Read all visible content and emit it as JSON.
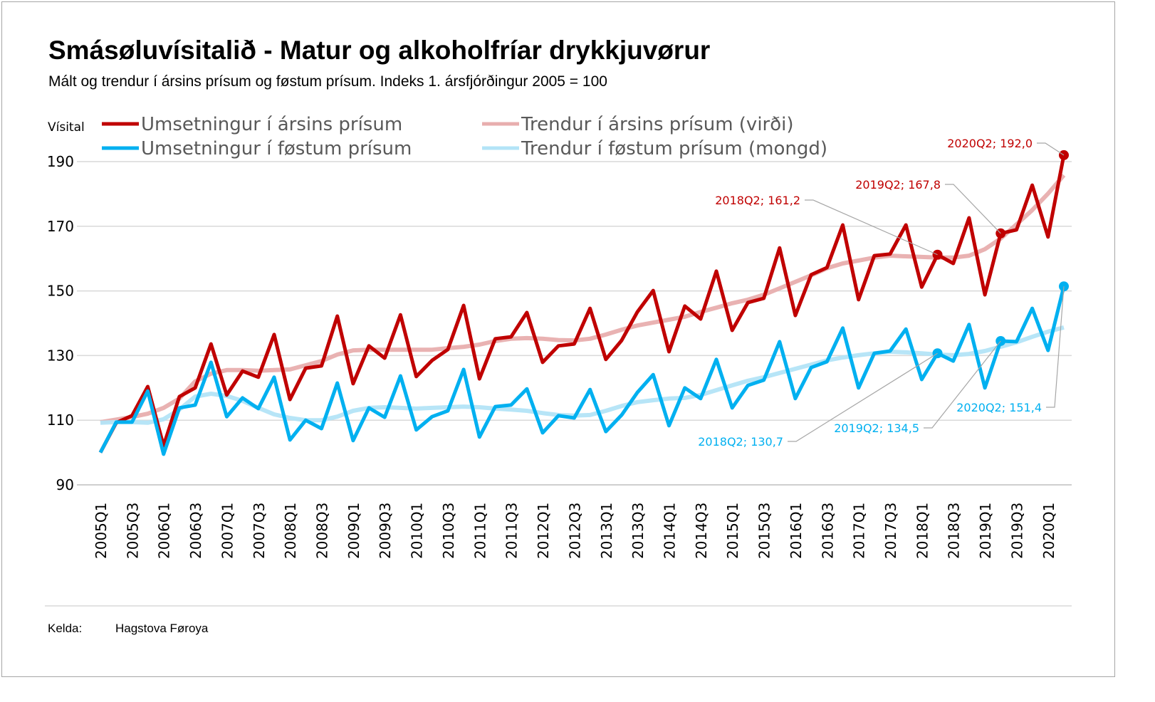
{
  "title": "Smásøluvísitalið - Matur og alkoholfríar drykkjuvørur",
  "subtitle": "Mált og trendur í ársins prísum og føstum prísum. Indeks 1. ársfjórðingur 2005 = 100",
  "source": {
    "label": "Kelda:",
    "value": "Hagstova Føroya"
  },
  "colors": {
    "red": "#c00000",
    "blue": "#00b0f0",
    "red_trend": "#e8aeae",
    "blue_trend": "#b3e4f7"
  },
  "chart_data": {
    "type": "line",
    "title": "Smásøluvísitalið - Matur og alkoholfríar drykkjuvørur",
    "ylabel": "Vísital",
    "ylim": [
      90,
      190
    ],
    "yticks": [
      90,
      110,
      130,
      150,
      170,
      190
    ],
    "grid": true,
    "legend_position": "top",
    "x": [
      "2005Q1",
      "2005Q2",
      "2005Q3",
      "2005Q4",
      "2006Q1",
      "2006Q2",
      "2006Q3",
      "2006Q4",
      "2007Q1",
      "2007Q2",
      "2007Q3",
      "2007Q4",
      "2008Q1",
      "2008Q2",
      "2008Q3",
      "2008Q4",
      "2009Q1",
      "2009Q2",
      "2009Q3",
      "2009Q4",
      "2010Q1",
      "2010Q2",
      "2010Q3",
      "2010Q4",
      "2011Q1",
      "2011Q2",
      "2011Q3",
      "2011Q4",
      "2012Q1",
      "2012Q2",
      "2012Q3",
      "2012Q4",
      "2013Q1",
      "2013Q2",
      "2013Q3",
      "2013Q4",
      "2014Q1",
      "2014Q2",
      "2014Q3",
      "2014Q4",
      "2015Q1",
      "2015Q2",
      "2015Q3",
      "2015Q4",
      "2016Q1",
      "2016Q2",
      "2016Q3",
      "2016Q4",
      "2017Q1",
      "2017Q2",
      "2017Q3",
      "2017Q4",
      "2018Q1",
      "2018Q2",
      "2018Q3",
      "2018Q4",
      "2019Q1",
      "2019Q2",
      "2019Q3",
      "2019Q4",
      "2020Q1",
      "2020Q2"
    ],
    "series": [
      {
        "name": "Trendur í ársins prísum (virði)",
        "color": "#e8aeae",
        "values": [
          109.4,
          110.2,
          111,
          112,
          113.8,
          116.7,
          122,
          124.4,
          125.5,
          125.5,
          125.3,
          125.5,
          125.7,
          127,
          128.3,
          130.3,
          131.6,
          131.8,
          131.8,
          131.8,
          131.8,
          131.8,
          132.3,
          132.7,
          133.4,
          134.5,
          135.2,
          135.4,
          135.2,
          134.8,
          134.7,
          135.2,
          136.5,
          138,
          139.3,
          140.2,
          141.1,
          142,
          143.5,
          144.8,
          146.2,
          147.3,
          148.8,
          150.8,
          152.8,
          154.8,
          157,
          158.5,
          159.4,
          160.3,
          160.9,
          160.7,
          160.5,
          160.3,
          160.3,
          160.9,
          162.9,
          166.2,
          170.6,
          175,
          180.1,
          185.8
        ]
      },
      {
        "name": "Trendur í føstum prísum (mongd)",
        "color": "#b3e4f7",
        "values": [
          109.2,
          109.4,
          109.4,
          109.2,
          110.3,
          113.3,
          117.3,
          118.2,
          117.5,
          116,
          113.8,
          111.8,
          110.7,
          110,
          110,
          111.1,
          112.9,
          113.8,
          114,
          113.8,
          113.6,
          113.8,
          114,
          114.2,
          114,
          113.6,
          113.3,
          112.9,
          112.2,
          111.6,
          111.4,
          111.6,
          112.9,
          114.4,
          115.6,
          116.2,
          116.7,
          116.9,
          117.8,
          119.3,
          120.8,
          122.2,
          123.3,
          124.6,
          125.9,
          127.2,
          128.5,
          129.4,
          130.1,
          130.7,
          131.2,
          131,
          130.7,
          130.3,
          130.1,
          130.5,
          131.4,
          132.7,
          134.1,
          135.8,
          137.4,
          138.7
        ]
      },
      {
        "name": "Umsetningur í ársins prísum",
        "color": "#c00000",
        "values": [
          100,
          109.2,
          111.4,
          120.4,
          102.1,
          117.3,
          120,
          133.6,
          117.8,
          125.2,
          123.3,
          136.5,
          116.4,
          126.1,
          126.8,
          142.2,
          121.3,
          133,
          129.2,
          142.6,
          123.5,
          128.5,
          131.9,
          145.5,
          122.8,
          135.2,
          135.8,
          143.3,
          127.9,
          133,
          133.6,
          144.6,
          128.8,
          134.7,
          143.5,
          150.1,
          131.2,
          145.3,
          141.3,
          156.1,
          137.8,
          146.4,
          147.7,
          163.3,
          142.4,
          155,
          157.2,
          170.4,
          147.3,
          160.9,
          161.4,
          170.4,
          151.2,
          161.2,
          158.5,
          172.6,
          148.8,
          167.8,
          168.9,
          182.7,
          166.7,
          192.0
        ]
      },
      {
        "name": "Umsetningur í føstum prísum",
        "color": "#00b0f0",
        "values": [
          100,
          109.4,
          109.4,
          119,
          99.5,
          113.8,
          114.7,
          127.9,
          111.1,
          116.9,
          113.6,
          123.3,
          103.9,
          110,
          107.4,
          121.5,
          103.7,
          113.8,
          110.9,
          123.7,
          107,
          111.1,
          112.9,
          125.7,
          104.8,
          114.2,
          114.7,
          119.7,
          106.1,
          111.4,
          110.7,
          119.5,
          106.5,
          111.6,
          118.6,
          124.1,
          108.3,
          120,
          116.7,
          128.8,
          113.8,
          120.8,
          122.4,
          134.3,
          116.7,
          126.3,
          128.1,
          138.5,
          120,
          130.7,
          131.4,
          138.2,
          122.6,
          130.7,
          128.3,
          139.6,
          120,
          134.5,
          134.3,
          144.6,
          131.6,
          151.4
        ]
      }
    ],
    "legend": [
      "Umsetningur í ársins prísum",
      "Umsetningur í føstum prísum",
      "Trendur í ársins prísum (virði)",
      "Trendur í føstum prísum (mongd)"
    ],
    "annotations": [
      {
        "series": 2,
        "x": "2018Q2",
        "text": "2018Q2; 161,2"
      },
      {
        "series": 2,
        "x": "2019Q2",
        "text": "2019Q2; 167,8"
      },
      {
        "series": 2,
        "x": "2020Q2",
        "text": "2020Q2; 192,0"
      },
      {
        "series": 3,
        "x": "2018Q2",
        "text": "2018Q2; 130,7"
      },
      {
        "series": 3,
        "x": "2019Q2",
        "text": "2019Q2; 134,5"
      },
      {
        "series": 3,
        "x": "2020Q2",
        "text": "2020Q2; 151,4"
      }
    ]
  }
}
